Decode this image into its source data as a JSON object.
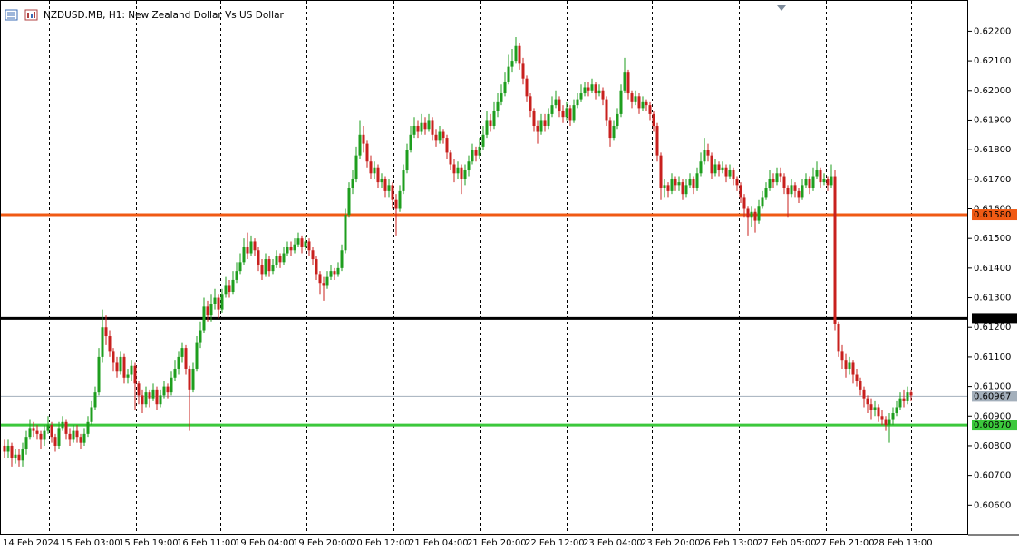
{
  "chart_data": {
    "type": "candlestick",
    "title": "NZDUSD.MB, H1:  New Zealand Dollar Vs US Dollar",
    "up_color": "#1e9e1e",
    "down_color": "#c8201e",
    "ylim": [
      0.605,
      0.6229
    ],
    "yticks": [
      {
        "value": 0.622,
        "label": "0.62200"
      },
      {
        "value": 0.621,
        "label": "0.62100"
      },
      {
        "value": 0.62,
        "label": "0.62000"
      },
      {
        "value": 0.619,
        "label": "0.61900"
      },
      {
        "value": 0.618,
        "label": "0.61800"
      },
      {
        "value": 0.617,
        "label": "0.61700"
      },
      {
        "value": 0.616,
        "label": "0.61600"
      },
      {
        "value": 0.615,
        "label": "0.61500"
      },
      {
        "value": 0.614,
        "label": "0.61400"
      },
      {
        "value": 0.613,
        "label": "0.61300"
      },
      {
        "value": 0.612,
        "label": "0.61200"
      },
      {
        "value": 0.611,
        "label": "0.61100"
      },
      {
        "value": 0.61,
        "label": "0.61000"
      },
      {
        "value": 0.609,
        "label": "0.60900"
      },
      {
        "value": 0.608,
        "label": "0.60800"
      },
      {
        "value": 0.607,
        "label": "0.60700"
      },
      {
        "value": 0.606,
        "label": "0.60600"
      }
    ],
    "levels": [
      {
        "value": 0.6158,
        "label": "0.61580",
        "color": "#f05a14"
      },
      {
        "value": 0.6123,
        "label": "0.61230",
        "color": "#000000"
      },
      {
        "value": 0.6087,
        "label": "0.60870",
        "color": "#3cc83c"
      }
    ],
    "bid": {
      "value": 0.60967,
      "label": "0.60967",
      "color": "#a3afbb"
    },
    "categories": [
      "14 Feb 2024",
      null,
      null,
      null,
      null,
      null,
      null,
      null,
      null,
      null,
      null,
      null,
      null,
      null,
      null,
      null,
      "15 Feb 03:00",
      null,
      null,
      null,
      null,
      null,
      null,
      null,
      null,
      null,
      null,
      null,
      null,
      null,
      null,
      null,
      "15 Feb 19:00",
      null,
      null,
      null,
      null,
      null,
      null,
      null,
      null,
      null,
      null,
      null,
      null,
      null,
      null,
      null,
      "16 Feb 11:00",
      null,
      null,
      null,
      null,
      null,
      null,
      null,
      null,
      null,
      null,
      null,
      null,
      null,
      null,
      null,
      "19 Feb 04:00",
      null,
      null,
      null,
      null,
      null,
      null,
      null,
      null,
      null,
      null,
      null,
      null,
      null,
      null,
      null,
      "19 Feb 20:00",
      null,
      null,
      null,
      null,
      null,
      null,
      null,
      null,
      null,
      null,
      null,
      null,
      null,
      null,
      null,
      "20 Feb 12:00",
      null,
      null,
      null,
      null,
      null,
      null,
      null,
      null,
      null,
      null,
      null,
      null,
      null,
      null,
      null,
      "21 Feb 04:00",
      null,
      null,
      null,
      null,
      null,
      null,
      null,
      null,
      null,
      null,
      null,
      null,
      null,
      null,
      null,
      "21 Feb 20:00",
      null,
      null,
      null,
      null,
      null,
      null,
      null,
      null,
      null,
      null,
      null,
      null,
      null,
      null,
      null,
      "22 Feb 12:00",
      null,
      null,
      null,
      null,
      null,
      null,
      null,
      null,
      null,
      null,
      null,
      null,
      null,
      null,
      null,
      "23 Feb 04:00",
      null,
      null,
      null,
      null,
      null,
      null,
      null,
      null,
      null,
      null,
      null,
      null,
      null,
      null,
      null,
      "23 Feb 20:00",
      null,
      null,
      null,
      null,
      null,
      null,
      null,
      null,
      null,
      null,
      null,
      null,
      null,
      null,
      null,
      "26 Feb 13:00",
      null,
      null,
      null,
      null,
      null,
      null,
      null,
      null,
      null,
      null,
      null,
      null,
      null,
      null,
      null,
      "27 Feb 05:00",
      null,
      null,
      null,
      null,
      null,
      null,
      null,
      null,
      null,
      null,
      null,
      null,
      null,
      null,
      null,
      "27 Feb 21:00",
      null,
      null,
      null,
      null,
      null,
      null,
      null,
      null,
      null,
      null,
      null,
      null,
      null,
      null,
      null,
      "28 Feb 13:00",
      null,
      null,
      null,
      null,
      null,
      null,
      null,
      null,
      null,
      null
    ],
    "open": [
      0.608,
      0.6078,
      0.608,
      0.6076,
      0.6077,
      0.6075,
      0.6079,
      0.6083,
      0.6086,
      0.6085,
      0.6084,
      0.6082,
      0.6085,
      0.6087,
      0.6083,
      0.608,
      0.6086,
      0.6088,
      0.6084,
      0.6082,
      0.6085,
      0.6083,
      0.6081,
      0.6084,
      0.6088,
      0.6093,
      0.6098,
      0.611,
      0.612,
      0.6117,
      0.6112,
      0.6108,
      0.6105,
      0.611,
      0.6103,
      0.6104,
      0.6107,
      0.6101,
      0.6097,
      0.6094,
      0.6098,
      0.6096,
      0.6099,
      0.6094,
      0.6097,
      0.61,
      0.6098,
      0.6103,
      0.6106,
      0.611,
      0.6113,
      0.6106,
      0.6099,
      0.6106,
      0.6115,
      0.6119,
      0.6127,
      0.6124,
      0.6128,
      0.613,
      0.6126,
      0.6131,
      0.6134,
      0.6132,
      0.6136,
      0.6139,
      0.6142,
      0.6147,
      0.6145,
      0.6149,
      0.6146,
      0.6141,
      0.6138,
      0.6143,
      0.6139,
      0.6141,
      0.6144,
      0.6142,
      0.6145,
      0.6147,
      0.6146,
      0.6148,
      0.615,
      0.6147,
      0.6149,
      0.6146,
      0.6143,
      0.6138,
      0.6135,
      0.6134,
      0.6137,
      0.6139,
      0.6138,
      0.614,
      0.6146,
      0.6158,
      0.6167,
      0.617,
      0.6178,
      0.6185,
      0.6182,
      0.6176,
      0.6172,
      0.6174,
      0.6169,
      0.617,
      0.6166,
      0.6168,
      0.6163,
      0.616,
      0.6166,
      0.6173,
      0.618,
      0.6185,
      0.6188,
      0.6186,
      0.6189,
      0.6187,
      0.619,
      0.6185,
      0.6183,
      0.6186,
      0.6184,
      0.6179,
      0.6175,
      0.6172,
      0.6174,
      0.617,
      0.6173,
      0.6176,
      0.618,
      0.6178,
      0.6181,
      0.6185,
      0.619,
      0.6188,
      0.6193,
      0.6196,
      0.6199,
      0.6203,
      0.6208,
      0.621,
      0.6215,
      0.6209,
      0.6204,
      0.6198,
      0.6193,
      0.6188,
      0.6186,
      0.619,
      0.6188,
      0.6192,
      0.6195,
      0.6197,
      0.6193,
      0.6191,
      0.6194,
      0.619,
      0.6195,
      0.6197,
      0.6199,
      0.6201,
      0.62,
      0.6202,
      0.6199,
      0.62,
      0.6197,
      0.619,
      0.6184,
      0.6188,
      0.6192,
      0.62,
      0.6206,
      0.6199,
      0.6196,
      0.6198,
      0.6194,
      0.6196,
      0.6195,
      0.6192,
      0.6188,
      0.6178,
      0.6167,
      0.6168,
      0.6166,
      0.617,
      0.6168,
      0.6169,
      0.6165,
      0.6168,
      0.617,
      0.6167,
      0.6172,
      0.6176,
      0.618,
      0.6178,
      0.6172,
      0.6175,
      0.6173,
      0.6174,
      0.6171,
      0.6173,
      0.617,
      0.6168,
      0.6164,
      0.616,
      0.6157,
      0.6159,
      0.6156,
      0.6161,
      0.6164,
      0.6167,
      0.617,
      0.6169,
      0.6172,
      0.6171,
      0.6167,
      0.6165,
      0.6168,
      0.6166,
      0.6164,
      0.6168,
      0.617,
      0.6167,
      0.6171,
      0.6173,
      0.6169,
      0.617,
      0.6168,
      0.6171,
      0.6121,
      0.6112,
      0.6109,
      0.6106,
      0.6108,
      0.6104,
      0.6102,
      0.6099,
      0.6096,
      0.6094,
      0.6092,
      0.6093,
      0.609,
      0.6089,
      0.6087,
      0.6089,
      0.6091,
      0.6093,
      0.6096,
      0.6095,
      0.6098
    ],
    "high": [
      0.6082,
      0.6082,
      0.6081,
      0.6079,
      0.6079,
      0.6081,
      0.6085,
      0.6089,
      0.6088,
      0.6087,
      0.6085,
      0.6087,
      0.609,
      0.6088,
      0.6084,
      0.6088,
      0.609,
      0.6089,
      0.6086,
      0.6087,
      0.6087,
      0.6084,
      0.6086,
      0.609,
      0.6095,
      0.61,
      0.6113,
      0.6126,
      0.6124,
      0.6119,
      0.6113,
      0.611,
      0.6112,
      0.6111,
      0.6106,
      0.6109,
      0.6108,
      0.6102,
      0.6099,
      0.61,
      0.6099,
      0.6101,
      0.61,
      0.6099,
      0.6102,
      0.6101,
      0.6105,
      0.6109,
      0.6112,
      0.6115,
      0.6114,
      0.6107,
      0.6108,
      0.6117,
      0.6122,
      0.613,
      0.6129,
      0.6131,
      0.6133,
      0.6131,
      0.6133,
      0.6137,
      0.6136,
      0.6139,
      0.6142,
      0.6145,
      0.615,
      0.6152,
      0.6151,
      0.615,
      0.6147,
      0.6143,
      0.6145,
      0.6144,
      0.6143,
      0.6146,
      0.6145,
      0.6147,
      0.6149,
      0.6149,
      0.615,
      0.6152,
      0.6151,
      0.6151,
      0.615,
      0.6147,
      0.6144,
      0.6139,
      0.6137,
      0.6139,
      0.6141,
      0.614,
      0.6142,
      0.6148,
      0.616,
      0.6169,
      0.6173,
      0.6181,
      0.619,
      0.6188,
      0.6183,
      0.6178,
      0.6176,
      0.6175,
      0.6172,
      0.6171,
      0.617,
      0.6169,
      0.6165,
      0.6168,
      0.6175,
      0.6182,
      0.6188,
      0.6191,
      0.619,
      0.6192,
      0.6191,
      0.6192,
      0.6191,
      0.6187,
      0.6188,
      0.6187,
      0.6185,
      0.618,
      0.6177,
      0.6176,
      0.6175,
      0.6175,
      0.6178,
      0.6182,
      0.6181,
      0.6184,
      0.6188,
      0.6193,
      0.6192,
      0.6196,
      0.6199,
      0.6202,
      0.6206,
      0.6212,
      0.6214,
      0.6218,
      0.6216,
      0.6211,
      0.6205,
      0.6199,
      0.6194,
      0.619,
      0.6192,
      0.6192,
      0.6194,
      0.6198,
      0.62,
      0.6198,
      0.6195,
      0.6196,
      0.6195,
      0.6197,
      0.6199,
      0.6202,
      0.6203,
      0.6203,
      0.6204,
      0.6203,
      0.6202,
      0.6201,
      0.6198,
      0.6191,
      0.619,
      0.6194,
      0.6202,
      0.6211,
      0.6207,
      0.62,
      0.62,
      0.6199,
      0.6198,
      0.6197,
      0.6196,
      0.6193,
      0.6189,
      0.6179,
      0.617,
      0.6169,
      0.6172,
      0.6171,
      0.6171,
      0.617,
      0.617,
      0.6172,
      0.6171,
      0.6174,
      0.6179,
      0.6184,
      0.6182,
      0.6179,
      0.6177,
      0.6176,
      0.6176,
      0.6175,
      0.6175,
      0.6174,
      0.6171,
      0.6169,
      0.6165,
      0.6161,
      0.6161,
      0.616,
      0.6163,
      0.6166,
      0.6169,
      0.6173,
      0.6172,
      0.6174,
      0.6174,
      0.6172,
      0.6168,
      0.617,
      0.6169,
      0.6167,
      0.617,
      0.6172,
      0.6171,
      0.6174,
      0.6176,
      0.6174,
      0.6172,
      0.6171,
      0.6175,
      0.6173,
      0.6122,
      0.6114,
      0.6111,
      0.611,
      0.6109,
      0.6106,
      0.6103,
      0.61,
      0.6097,
      0.6096,
      0.6095,
      0.6094,
      0.6092,
      0.609,
      0.6091,
      0.6093,
      0.6095,
      0.6098,
      0.6099,
      0.61,
      0.6099
    ],
    "low": [
      0.6076,
      0.6076,
      0.6073,
      0.6074,
      0.6073,
      0.6073,
      0.6077,
      0.6082,
      0.6083,
      0.6082,
      0.6079,
      0.608,
      0.6084,
      0.6081,
      0.6078,
      0.6079,
      0.6085,
      0.6082,
      0.608,
      0.6081,
      0.6081,
      0.6079,
      0.608,
      0.6083,
      0.6087,
      0.6092,
      0.6097,
      0.6108,
      0.6114,
      0.611,
      0.6105,
      0.6103,
      0.6104,
      0.6101,
      0.6101,
      0.6102,
      0.6092,
      0.6094,
      0.6091,
      0.6093,
      0.6093,
      0.6095,
      0.6092,
      0.6093,
      0.6096,
      0.6096,
      0.6097,
      0.6102,
      0.6104,
      0.6108,
      0.6104,
      0.6085,
      0.6098,
      0.6105,
      0.6113,
      0.6118,
      0.6122,
      0.6122,
      0.6126,
      0.6123,
      0.6125,
      0.613,
      0.613,
      0.6131,
      0.6135,
      0.6138,
      0.6141,
      0.6143,
      0.6144,
      0.6144,
      0.6139,
      0.6136,
      0.6137,
      0.6137,
      0.6138,
      0.614,
      0.614,
      0.6141,
      0.6144,
      0.6144,
      0.6145,
      0.6147,
      0.6145,
      0.6146,
      0.6144,
      0.6141,
      0.6136,
      0.6131,
      0.6129,
      0.6133,
      0.6136,
      0.6136,
      0.6137,
      0.6139,
      0.6145,
      0.6157,
      0.6165,
      0.6169,
      0.6177,
      0.6179,
      0.6174,
      0.617,
      0.617,
      0.6167,
      0.6167,
      0.6164,
      0.6164,
      0.616,
      0.6151,
      0.6159,
      0.6165,
      0.6172,
      0.6179,
      0.6184,
      0.6184,
      0.6185,
      0.6185,
      0.6186,
      0.6183,
      0.6181,
      0.6182,
      0.6182,
      0.6177,
      0.6173,
      0.6169,
      0.617,
      0.6165,
      0.6168,
      0.6171,
      0.6175,
      0.6176,
      0.6177,
      0.618,
      0.6184,
      0.6186,
      0.6187,
      0.6191,
      0.6195,
      0.6198,
      0.6202,
      0.6206,
      0.6209,
      0.6207,
      0.6202,
      0.6196,
      0.6191,
      0.6186,
      0.6182,
      0.6185,
      0.6186,
      0.6187,
      0.6191,
      0.6194,
      0.6191,
      0.6189,
      0.619,
      0.6188,
      0.6189,
      0.6194,
      0.6196,
      0.6198,
      0.6198,
      0.6199,
      0.6197,
      0.6198,
      0.6195,
      0.6188,
      0.6181,
      0.6183,
      0.6187,
      0.6191,
      0.6199,
      0.6197,
      0.6194,
      0.6195,
      0.6192,
      0.6193,
      0.6193,
      0.619,
      0.6186,
      0.6176,
      0.6163,
      0.6164,
      0.6164,
      0.6165,
      0.6166,
      0.6166,
      0.6163,
      0.6164,
      0.6167,
      0.6165,
      0.6166,
      0.6171,
      0.6175,
      0.6176,
      0.617,
      0.6171,
      0.6171,
      0.6172,
      0.6169,
      0.617,
      0.6168,
      0.6166,
      0.6162,
      0.6157,
      0.6151,
      0.6154,
      0.6152,
      0.6155,
      0.616,
      0.6163,
      0.6166,
      0.6167,
      0.6168,
      0.6169,
      0.6165,
      0.6157,
      0.6164,
      0.6164,
      0.6162,
      0.6163,
      0.6167,
      0.6165,
      0.6166,
      0.617,
      0.6167,
      0.6168,
      0.6166,
      0.6167,
      0.6119,
      0.611,
      0.6106,
      0.6103,
      0.6104,
      0.6101,
      0.61,
      0.6097,
      0.6093,
      0.6091,
      0.6089,
      0.609,
      0.6088,
      0.6087,
      0.6085,
      0.6081,
      0.6087,
      0.609,
      0.6092,
      0.6093,
      0.6094,
      0.6095
    ],
    "close": [
      0.6078,
      0.608,
      0.6076,
      0.6077,
      0.6075,
      0.6079,
      0.6083,
      0.6086,
      0.6085,
      0.6084,
      0.6082,
      0.6085,
      0.6087,
      0.6083,
      0.608,
      0.6086,
      0.6088,
      0.6084,
      0.6082,
      0.6085,
      0.6083,
      0.6081,
      0.6084,
      0.6088,
      0.6093,
      0.6098,
      0.611,
      0.612,
      0.6117,
      0.6112,
      0.6108,
      0.6105,
      0.611,
      0.6103,
      0.6104,
      0.6107,
      0.6101,
      0.6097,
      0.6094,
      0.6098,
      0.6096,
      0.6099,
      0.6094,
      0.6097,
      0.61,
      0.6098,
      0.6103,
      0.6106,
      0.611,
      0.6113,
      0.6106,
      0.6099,
      0.6106,
      0.6115,
      0.6119,
      0.6127,
      0.6124,
      0.6128,
      0.613,
      0.6126,
      0.6131,
      0.6134,
      0.6132,
      0.6136,
      0.6139,
      0.6142,
      0.6147,
      0.6145,
      0.6149,
      0.6146,
      0.6141,
      0.6138,
      0.6143,
      0.6139,
      0.6141,
      0.6144,
      0.6142,
      0.6145,
      0.6147,
      0.6146,
      0.6148,
      0.615,
      0.6147,
      0.6149,
      0.6146,
      0.6143,
      0.6138,
      0.6135,
      0.6134,
      0.6137,
      0.6139,
      0.6138,
      0.614,
      0.6146,
      0.6158,
      0.6167,
      0.617,
      0.6178,
      0.6185,
      0.6182,
      0.6176,
      0.6172,
      0.6174,
      0.6169,
      0.617,
      0.6166,
      0.6168,
      0.6163,
      0.616,
      0.6166,
      0.6173,
      0.618,
      0.6185,
      0.6188,
      0.6186,
      0.6189,
      0.6187,
      0.619,
      0.6185,
      0.6183,
      0.6186,
      0.6184,
      0.6179,
      0.6175,
      0.6172,
      0.6174,
      0.617,
      0.6173,
      0.6176,
      0.618,
      0.6178,
      0.6181,
      0.6185,
      0.619,
      0.6188,
      0.6193,
      0.6196,
      0.6199,
      0.6203,
      0.6208,
      0.621,
      0.6215,
      0.6209,
      0.6204,
      0.6198,
      0.6193,
      0.6188,
      0.6186,
      0.619,
      0.6188,
      0.6192,
      0.6195,
      0.6197,
      0.6193,
      0.6191,
      0.6194,
      0.619,
      0.6195,
      0.6197,
      0.6199,
      0.6201,
      0.62,
      0.6202,
      0.6199,
      0.62,
      0.6197,
      0.619,
      0.6184,
      0.6188,
      0.6192,
      0.62,
      0.6206,
      0.6199,
      0.6196,
      0.6198,
      0.6194,
      0.6196,
      0.6195,
      0.6192,
      0.6188,
      0.6178,
      0.6167,
      0.6168,
      0.6166,
      0.617,
      0.6168,
      0.6169,
      0.6165,
      0.6168,
      0.617,
      0.6167,
      0.6172,
      0.6176,
      0.618,
      0.6178,
      0.6172,
      0.6175,
      0.6173,
      0.6174,
      0.6171,
      0.6173,
      0.617,
      0.6168,
      0.6164,
      0.616,
      0.6157,
      0.6159,
      0.6156,
      0.6161,
      0.6164,
      0.6167,
      0.617,
      0.6169,
      0.6172,
      0.6171,
      0.6167,
      0.6165,
      0.6168,
      0.6166,
      0.6164,
      0.6168,
      0.617,
      0.6167,
      0.6171,
      0.6173,
      0.6169,
      0.617,
      0.6168,
      0.6171,
      0.6121,
      0.6112,
      0.6109,
      0.6106,
      0.6108,
      0.6104,
      0.6102,
      0.6099,
      0.6096,
      0.6094,
      0.6092,
      0.6093,
      0.609,
      0.6089,
      0.6087,
      0.6089,
      0.6091,
      0.6093,
      0.6096,
      0.6095,
      0.6098,
      0.6097
    ]
  }
}
